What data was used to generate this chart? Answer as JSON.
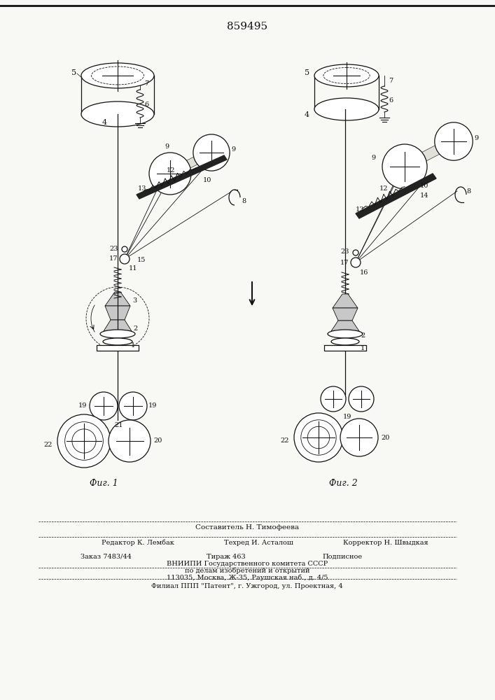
{
  "patent_number": "859495",
  "fig1_label": "Фиг. 1",
  "fig2_label": "Фиг. 2",
  "footer_line0": "Составитель Н. Тимофеева",
  "footer_line1a": "Редактор К. Лембак",
  "footer_line1b": "Техред И. Асталош",
  "footer_line1c": "Корректор Н. Швыдкая",
  "footer_line2a": "Заказ 7483/44",
  "footer_line2b": "Тираж 463",
  "footer_line2c": "Подписное",
  "footer_line3": "ВНИИПИ Государственного комитета СССР",
  "footer_line4": "по делам изобретений и открытий",
  "footer_line5": "113035, Москва, Ж-35, Раушская наб., д. 4/5",
  "footer_line6": "Филиал ППП \"Патент\", г. Ужгород, ул. Проектная, 4",
  "bg_color": "#f8f8f4",
  "line_color": "#111111"
}
